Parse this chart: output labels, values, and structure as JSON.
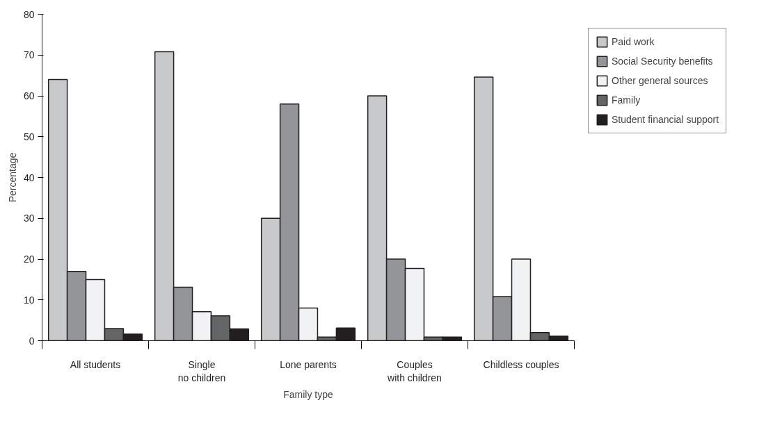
{
  "chart_data": {
    "type": "bar",
    "xlabel": "Family type",
    "ylabel": "Percentage",
    "categories": [
      "All students",
      "Single\nno children",
      "Lone parents",
      "Couples\nwith children",
      "Childless couples"
    ],
    "series": [
      {
        "name": "Paid work",
        "color": "#c8c9cb",
        "values": [
          64,
          70.8,
          30,
          60,
          64.6
        ]
      },
      {
        "name": "Social Security benefits",
        "color": "#939598",
        "values": [
          17,
          13.1,
          58,
          20,
          10.8
        ]
      },
      {
        "name": "Other general sources",
        "color": "#f1f2f3",
        "values": [
          15,
          7.1,
          8,
          17.7,
          20
        ]
      },
      {
        "name": "Family",
        "color": "#636466",
        "values": [
          3,
          6.1,
          0.9,
          0.9,
          2
        ]
      },
      {
        "name": "Student financial support",
        "color": "#231f20",
        "values": [
          1.6,
          2.9,
          3.1,
          0.9,
          1.1
        ]
      }
    ],
    "ylim": [
      0,
      80
    ],
    "yticks": [
      0,
      10,
      20,
      30,
      40,
      50,
      60,
      70,
      80
    ],
    "grid": false,
    "legend": "top right"
  }
}
